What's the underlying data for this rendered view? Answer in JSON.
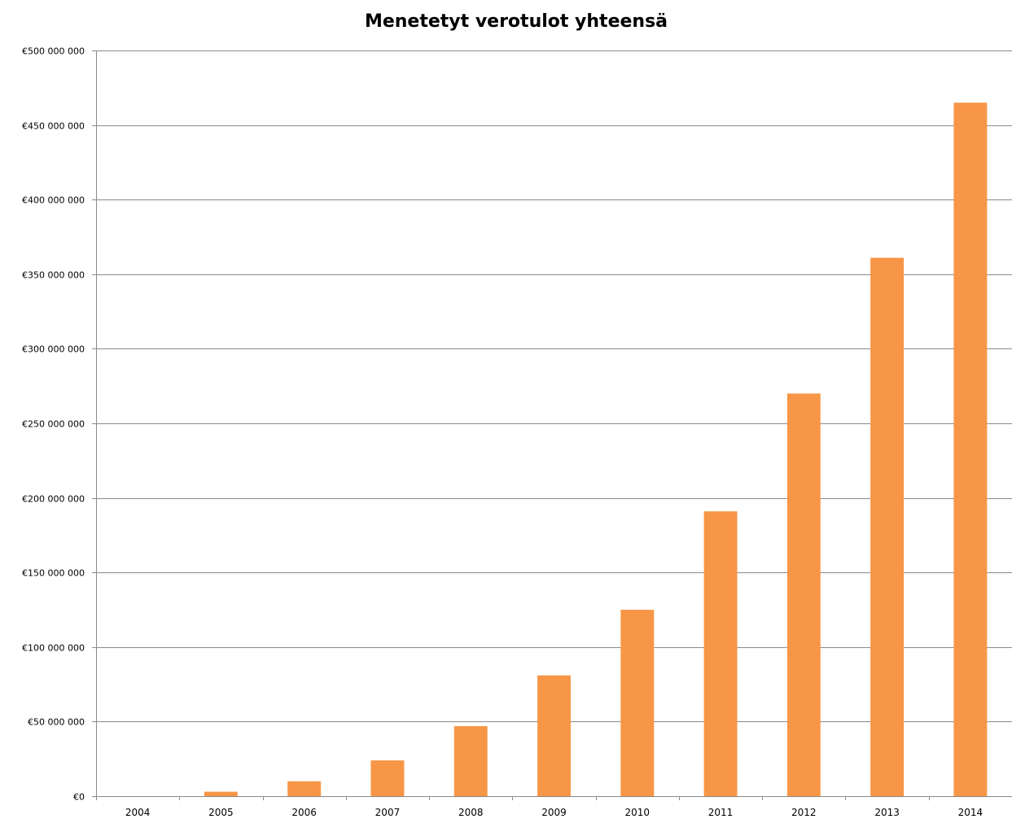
{
  "chart_data": {
    "type": "bar",
    "title": "Menetetyt verotulot yhteensä",
    "xlabel": "",
    "ylabel": "",
    "categories": [
      "2004",
      "2005",
      "2006",
      "2007",
      "2008",
      "2009",
      "2010",
      "2011",
      "2012",
      "2013",
      "2014"
    ],
    "values": [
      0,
      3000000,
      10000000,
      24000000,
      47000000,
      81000000,
      125000000,
      191000000,
      270000000,
      361000000,
      465000000
    ],
    "ylim": [
      0,
      500000000
    ],
    "yticks": [
      0,
      50000000,
      100000000,
      150000000,
      200000000,
      250000000,
      300000000,
      350000000,
      400000000,
      450000000,
      500000000
    ],
    "ytick_labels": [
      "€0",
      "€50 000 000",
      "€100 000 000",
      "€150 000 000",
      "€200 000 000",
      "€250 000 000",
      "€300 000 000",
      "€350 000 000",
      "€400 000 000",
      "€450 000 000",
      "€500 000 000"
    ],
    "grid": true,
    "legend": "none",
    "bar_color": "#f79646",
    "grid_color": "#8a8a8a"
  }
}
